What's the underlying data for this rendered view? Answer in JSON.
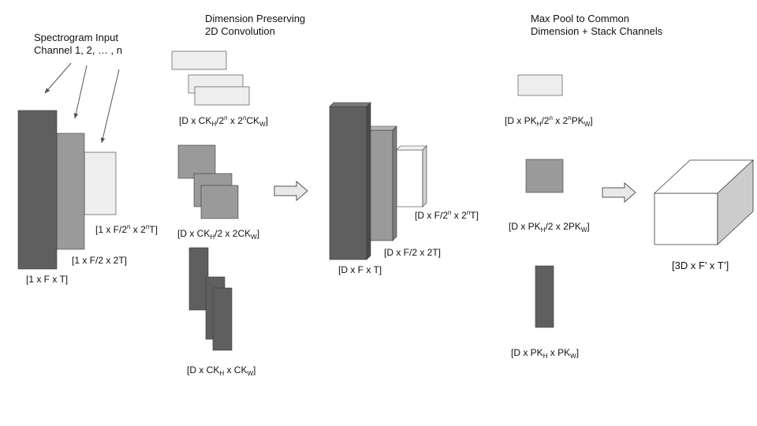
{
  "headers": {
    "input": [
      "Spectrogram Input",
      "Channel 1, 2, … , n"
    ],
    "conv": [
      "Dimension Preserving",
      "2D Convolution"
    ],
    "pool": [
      "Max Pool to Common",
      "Dimension + Stack Channels"
    ]
  },
  "labels": {
    "in1": "[1 x F x T]",
    "in2": "[1 x F/2 x 2T]",
    "in3": [
      [
        "t",
        "[1 x F/2"
      ],
      [
        "sup",
        "n"
      ],
      [
        "t",
        " x 2"
      ],
      [
        "sup",
        "n"
      ],
      [
        "t",
        "T]"
      ]
    ],
    "k1": [
      [
        "t",
        "[D x CK"
      ],
      [
        "sub",
        "H"
      ],
      [
        "t",
        "/2"
      ],
      [
        "sup",
        "n"
      ],
      [
        "t",
        " x 2"
      ],
      [
        "sup",
        "n"
      ],
      [
        "t",
        "CK"
      ],
      [
        "sub",
        "W"
      ],
      [
        "t",
        "]"
      ]
    ],
    "k2": [
      [
        "t",
        "[D x CK"
      ],
      [
        "sub",
        "H"
      ],
      [
        "t",
        "/2 x 2CK"
      ],
      [
        "sub",
        "W"
      ],
      [
        "t",
        "]"
      ]
    ],
    "k3": [
      [
        "t",
        "[D x CK"
      ],
      [
        "sub",
        "H"
      ],
      [
        "t",
        " x CK"
      ],
      [
        "sub",
        "W"
      ],
      [
        "t",
        "]"
      ]
    ],
    "f1": "[D x F x T]",
    "f2": "[D x F/2 x 2T]",
    "f3": [
      [
        "t",
        "[D x F/2"
      ],
      [
        "sup",
        "n"
      ],
      [
        "t",
        " x 2"
      ],
      [
        "sup",
        "n"
      ],
      [
        "t",
        "T]"
      ]
    ],
    "p1": [
      [
        "t",
        "[D x PK"
      ],
      [
        "sub",
        "H"
      ],
      [
        "t",
        "/2"
      ],
      [
        "sup",
        "n"
      ],
      [
        "t",
        " x 2"
      ],
      [
        "sup",
        "n"
      ],
      [
        "t",
        "PK"
      ],
      [
        "sub",
        "W"
      ],
      [
        "t",
        "]"
      ]
    ],
    "p2": [
      [
        "t",
        "[D x PK"
      ],
      [
        "sub",
        "H"
      ],
      [
        "t",
        "/2 x 2PK"
      ],
      [
        "sub",
        "W"
      ],
      [
        "t",
        "]"
      ]
    ],
    "p3": [
      [
        "t",
        "[D x PK"
      ],
      [
        "sub",
        "H"
      ],
      [
        "t",
        " x PK"
      ],
      [
        "sub",
        "W"
      ],
      [
        "t",
        "]"
      ]
    ],
    "out": "[3D x F’ x T’]"
  },
  "colors": {
    "dark": "#5f5f5f",
    "mid": "#9a9a9a",
    "light": "#eeeeee",
    "white": "#ffffff",
    "stroke": "#3a3a3a"
  }
}
